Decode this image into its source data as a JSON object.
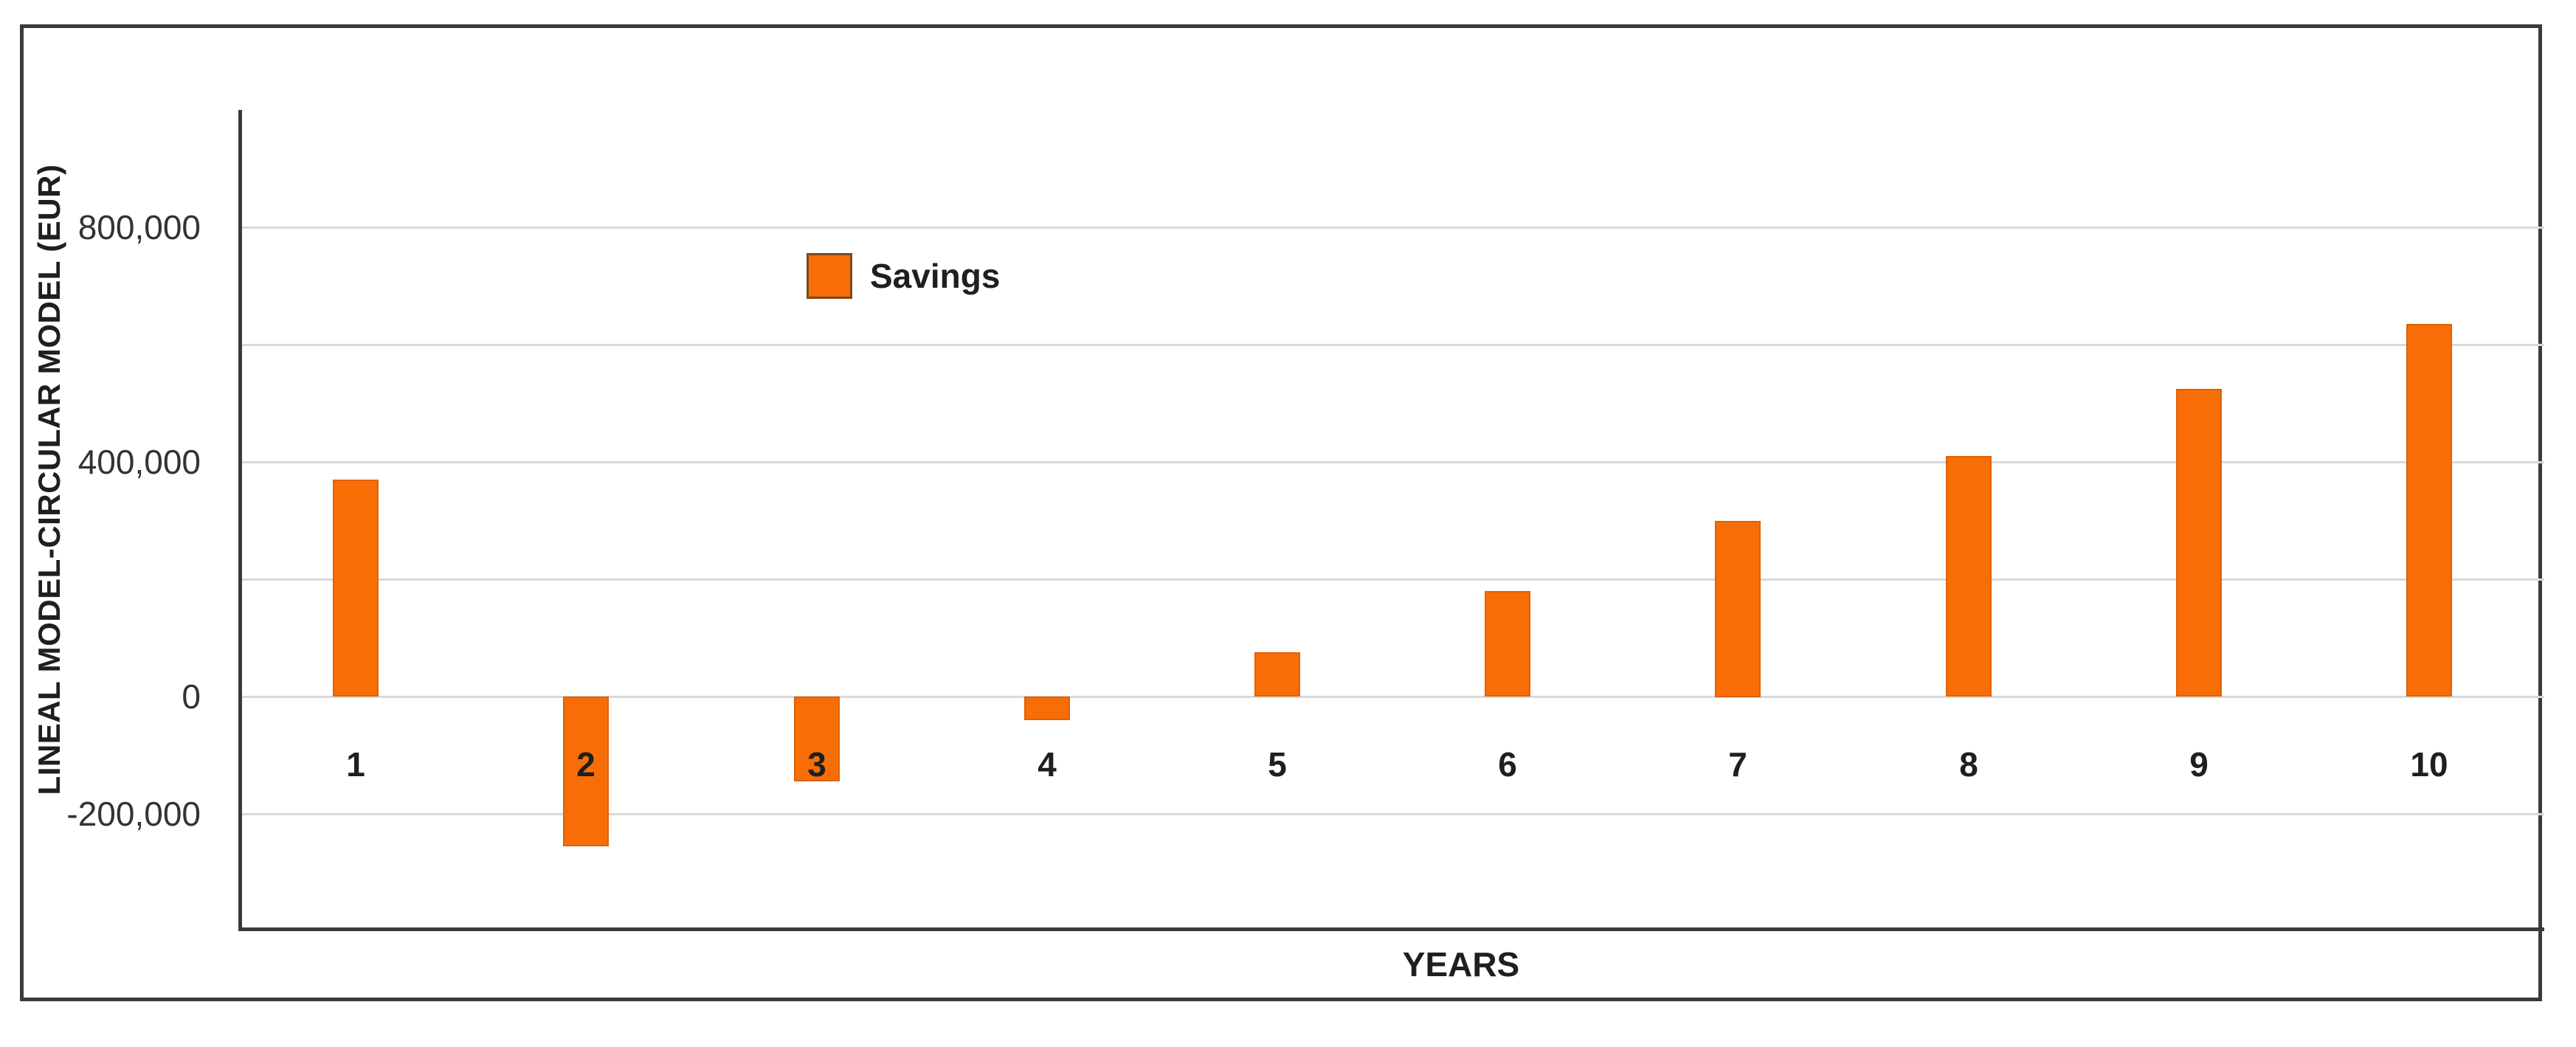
{
  "chart_data": {
    "type": "bar",
    "title": "",
    "categories": [
      "1",
      "2",
      "3",
      "4",
      "5",
      "6",
      "7",
      "8",
      "9",
      "10"
    ],
    "series": [
      {
        "name": "Savings",
        "values": [
          370000,
          -255000,
          -145000,
          -40000,
          75000,
          180000,
          300000,
          410000,
          525000,
          635000
        ]
      }
    ],
    "xlabel": "YEARS",
    "ylabel": "LINEAL MODEL-CIRCULAR MODEL (EUR)",
    "ylim": [
      -400000,
      1000000
    ],
    "gridline_values": [
      800000,
      600000,
      400000,
      200000,
      0,
      -200000
    ],
    "yticks": [
      {
        "value": 800000,
        "label": "800,000"
      },
      {
        "value": 400000,
        "label": "400,000"
      },
      {
        "value": 0,
        "label": "0"
      },
      {
        "value": -200000,
        "label": "-200,000"
      }
    ],
    "grid": true,
    "legend": {
      "label": "Savings",
      "position": "inside-top-left"
    },
    "colors": {
      "bar_fill": "#f96d07",
      "bar_edge": "#b85408",
      "gridline": "#d9d9d9",
      "axis": "#3a3a3a",
      "frame_border": "#3a3a3a",
      "text": "#1f1f1f",
      "tick_text": "#333333",
      "background": "#ffffff"
    }
  }
}
